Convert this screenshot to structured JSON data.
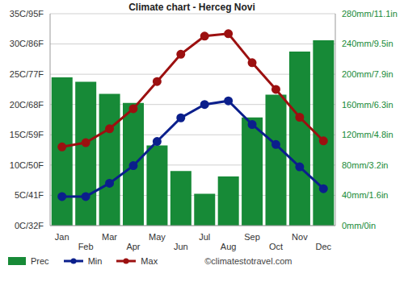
{
  "chart_data": {
    "type": "bar",
    "title": "Climate chart - Herceg Novi",
    "categories": [
      "Jan",
      "Feb",
      "Mar",
      "Apr",
      "May",
      "Jun",
      "Jul",
      "Aug",
      "Sep",
      "Oct",
      "Nov",
      "Dec"
    ],
    "series": [
      {
        "name": "Prec",
        "type": "bar",
        "axis": "y2",
        "color": "#178a37",
        "values": [
          196,
          190,
          174,
          162,
          106,
          72,
          42,
          65,
          143,
          173,
          230,
          245
        ]
      },
      {
        "name": "Min",
        "type": "line",
        "color": "#0b1f8c",
        "marker": "circle",
        "values": [
          4.8,
          4.8,
          7.0,
          9.9,
          13.9,
          17.8,
          20.0,
          20.6,
          16.7,
          13.4,
          9.7,
          6.1
        ]
      },
      {
        "name": "Max",
        "type": "line",
        "color": "#9c1010",
        "marker": "circle",
        "values": [
          13.0,
          13.7,
          16.0,
          19.3,
          23.8,
          28.3,
          31.3,
          31.7,
          26.9,
          22.5,
          17.9,
          14.0
        ]
      }
    ],
    "ylim": [
      0,
      35
    ],
    "yticks": [
      {
        "value": 0,
        "label": "0C/32F"
      },
      {
        "value": 5,
        "label": "5C/41F"
      },
      {
        "value": 10,
        "label": "10C/50F"
      },
      {
        "value": 15,
        "label": "15C/59F"
      },
      {
        "value": 20,
        "label": "20C/68F"
      },
      {
        "value": 25,
        "label": "25C/77F"
      },
      {
        "value": 30,
        "label": "30C/86F"
      },
      {
        "value": 35,
        "label": "35C/95F"
      }
    ],
    "y2lim": [
      0,
      280
    ],
    "y2ticks": [
      {
        "value": 0,
        "label": "0mm/0in"
      },
      {
        "value": 40,
        "label": "40mm/1.6in"
      },
      {
        "value": 80,
        "label": "80mm/3.2in"
      },
      {
        "value": 120,
        "label": "120mm/4.8in"
      },
      {
        "value": 160,
        "label": "160mm/6.3in"
      },
      {
        "value": 200,
        "label": "200mm/7.9in"
      },
      {
        "value": 240,
        "label": "240mm/9.5in"
      },
      {
        "value": 280,
        "label": "280mm/11.1in"
      }
    ],
    "grid": true,
    "legend": "bottom",
    "annotations": [
      "©climatestotravel.com"
    ]
  }
}
